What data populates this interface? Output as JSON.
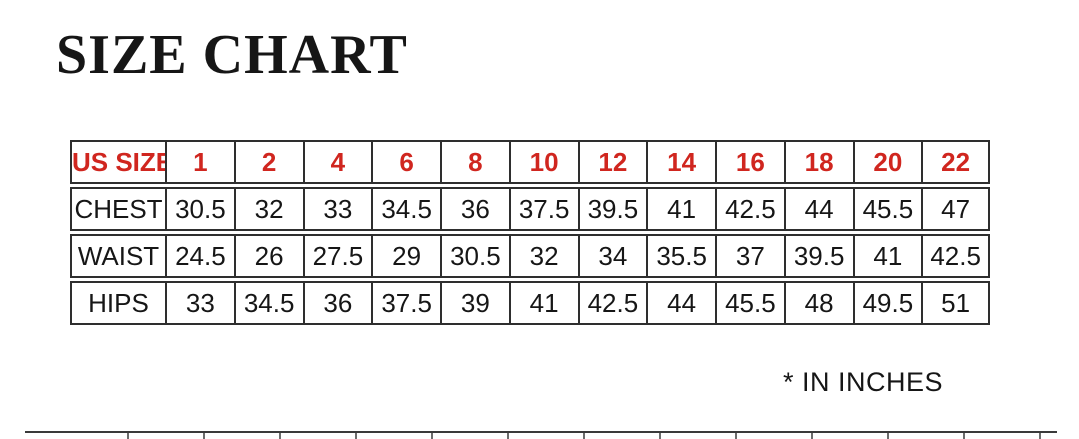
{
  "title": "SIZE CHART",
  "footnote": "* IN INCHES",
  "colors": {
    "header_red": "#d0261f",
    "border": "#2e2e2e",
    "body_text": "#161616"
  },
  "chart_data": {
    "type": "table",
    "title": "SIZE CHART",
    "units_note": "* IN INCHES",
    "header_label": "US SIZE",
    "columns": [
      "US SIZE",
      "1",
      "2",
      "4",
      "6",
      "8",
      "10",
      "12",
      "14",
      "16",
      "18",
      "20",
      "22"
    ],
    "rows": [
      {
        "label": "CHEST",
        "values": [
          "30.5",
          "32",
          "33",
          "34.5",
          "36",
          "37.5",
          "39.5",
          "41",
          "42.5",
          "44",
          "45.5",
          "47"
        ]
      },
      {
        "label": "WAIST",
        "values": [
          "24.5",
          "26",
          "27.5",
          "29",
          "30.5",
          "32",
          "34",
          "35.5",
          "37",
          "39.5",
          "41",
          "42.5"
        ]
      },
      {
        "label": "HIPS",
        "values": [
          "33",
          "34.5",
          "36",
          "37.5",
          "39",
          "41",
          "42.5",
          "44",
          "45.5",
          "48",
          "49.5",
          "51"
        ]
      }
    ]
  }
}
